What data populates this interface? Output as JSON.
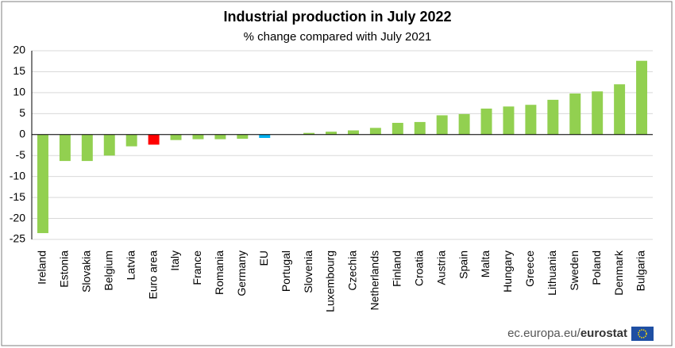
{
  "chart_data": {
    "type": "bar",
    "title": "Industrial production in July 2022",
    "subtitle": "% change compared with July 2021",
    "categories": [
      "Ireland",
      "Estonia",
      "Slovakia",
      "Belgium",
      "Latvia",
      "Euro area",
      "Italy",
      "France",
      "Romania",
      "Germany",
      "EU",
      "Portugal",
      "Slovenia",
      "Luxembourg",
      "Czechia",
      "Netherlands",
      "Finland",
      "Croatia",
      "Austria",
      "Spain",
      "Malta",
      "Hungary",
      "Greece",
      "Lithuania",
      "Sweden",
      "Poland",
      "Denmark",
      "Bulgaria"
    ],
    "values": [
      -23.5,
      -6.3,
      -6.3,
      -5.0,
      -2.8,
      -2.4,
      -1.3,
      -1.1,
      -1.1,
      -1.0,
      -0.8,
      0.0,
      0.4,
      0.7,
      1.0,
      1.6,
      2.8,
      3.0,
      4.6,
      4.9,
      6.2,
      6.7,
      7.1,
      8.3,
      9.8,
      10.3,
      12.0,
      17.6
    ],
    "colors": [
      "#92d050",
      "#92d050",
      "#92d050",
      "#92d050",
      "#92d050",
      "#ff0000",
      "#92d050",
      "#92d050",
      "#92d050",
      "#92d050",
      "#00b0f0",
      "#92d050",
      "#92d050",
      "#92d050",
      "#92d050",
      "#92d050",
      "#92d050",
      "#92d050",
      "#92d050",
      "#92d050",
      "#92d050",
      "#92d050",
      "#92d050",
      "#92d050",
      "#92d050",
      "#92d050",
      "#92d050",
      "#92d050"
    ],
    "ylim": [
      -25,
      20
    ],
    "yticks": [
      -25,
      -20,
      -15,
      -10,
      -5,
      0,
      5,
      10,
      15,
      20
    ],
    "grid": true
  },
  "footer": {
    "site": "ec.europa.eu/",
    "brand": "eurostat"
  }
}
